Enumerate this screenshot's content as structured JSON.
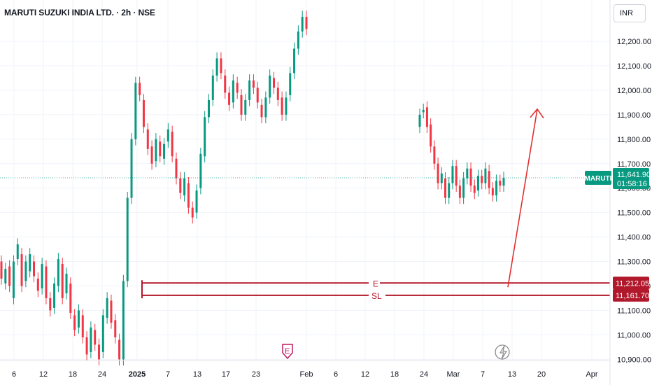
{
  "header": {
    "title": "MARUTI SUZUKI INDIA LTD. · 2h · NSE",
    "currency": "INR"
  },
  "chart_data": {
    "type": "candlestick",
    "symbol": "MARUTI",
    "interval": "2h",
    "exchange": "NSE",
    "price_axis": {
      "ticks": [
        12200,
        12100,
        12000,
        11900,
        11800,
        11700,
        11600,
        11500,
        11400,
        11300,
        11200,
        11100,
        11000,
        10900
      ],
      "tick_labels": [
        "12,200.00",
        "12,100.00",
        "12,000.00",
        "11,900.00",
        "11,800.00",
        "11,700.00",
        "11,600.00",
        "11,500.00",
        "11,400.00",
        "11,300.00",
        "11,200.00",
        "11,100.00",
        "11,000.00",
        "10,900.00"
      ],
      "visible_range": [
        10880,
        12270
      ]
    },
    "time_axis": {
      "labels": [
        "6",
        "12",
        "18",
        "24",
        "2025",
        "7",
        "13",
        "17",
        "23",
        "Feb",
        "6",
        "12",
        "18",
        "24",
        "Mar",
        "7",
        "13",
        "20",
        "Apr"
      ],
      "bold": [
        "2025"
      ]
    },
    "last_price": {
      "symbol_label": "MARUTI",
      "value": 11641.9,
      "label": "11,641.90",
      "countdown": "01:58:16",
      "color": "#089981"
    },
    "levels": [
      {
        "name": "E",
        "value": 11212.05,
        "label": "11,212.05",
        "color": "#b2182b"
      },
      {
        "name": "SL",
        "value": 11161.7,
        "label": "11,161.70",
        "color": "#b2182b"
      }
    ],
    "projection": {
      "color": "#e03131",
      "from_price": 11212,
      "to_price": 11900,
      "target_date": "Mar 20"
    },
    "event_markers": [
      {
        "type": "earnings",
        "label": "E",
        "color": "#c2185b"
      },
      {
        "type": "dividend",
        "label": "",
        "color": "#8a8a8a"
      }
    ],
    "colors": {
      "up": "#089981",
      "down": "#f23645",
      "grid": "#f0f3fa",
      "axis_text": "#131722"
    },
    "ohlc_points": [
      [
        11300,
        11230
      ],
      [
        11210,
        11270
      ],
      [
        11280,
        11200
      ],
      [
        11150,
        11300
      ],
      [
        11310,
        11370
      ],
      [
        11330,
        11200
      ],
      [
        11220,
        11300
      ],
      [
        11260,
        11330
      ],
      [
        11300,
        11240
      ],
      [
        11230,
        11180
      ],
      [
        11190,
        11290
      ],
      [
        11280,
        11150
      ],
      [
        11150,
        11100
      ],
      [
        11110,
        11210
      ],
      [
        11200,
        11310
      ],
      [
        11290,
        11150
      ],
      [
        11170,
        11250
      ],
      [
        11210,
        11090
      ],
      [
        11080,
        11020
      ],
      [
        11030,
        11100
      ],
      [
        11080,
        10990
      ],
      [
        10990,
        10920
      ],
      [
        10930,
        11030
      ],
      [
        11020,
        10960
      ],
      [
        10960,
        10900
      ],
      [
        10930,
        11080
      ],
      [
        11070,
        11150
      ],
      [
        11140,
        11050
      ],
      [
        11060,
        10990
      ],
      [
        10980,
        10900
      ],
      [
        10900,
        11220
      ],
      [
        11220,
        11560
      ],
      [
        11560,
        11800
      ],
      [
        11800,
        12030
      ],
      [
        12030,
        11980
      ],
      [
        11960,
        11850
      ],
      [
        11840,
        11760
      ],
      [
        11770,
        11700
      ],
      [
        11710,
        11800
      ],
      [
        11790,
        11730
      ],
      [
        11720,
        11780
      ],
      [
        11790,
        11840
      ],
      [
        11830,
        11730
      ],
      [
        11720,
        11640
      ],
      [
        11640,
        11580
      ],
      [
        11570,
        11640
      ],
      [
        11620,
        11520
      ],
      [
        11520,
        11480
      ],
      [
        11500,
        11590
      ],
      [
        11600,
        11740
      ],
      [
        11730,
        11890
      ],
      [
        11890,
        11960
      ],
      [
        11960,
        12060
      ],
      [
        12060,
        12130
      ],
      [
        12130,
        12070
      ],
      [
        12060,
        11990
      ],
      [
        11990,
        11940
      ],
      [
        11950,
        12040
      ],
      [
        12030,
        11990
      ],
      [
        11980,
        11900
      ],
      [
        11900,
        11960
      ],
      [
        11960,
        12040
      ],
      [
        12040,
        12010
      ],
      [
        12010,
        11950
      ],
      [
        11940,
        11890
      ],
      [
        11890,
        11970
      ],
      [
        11970,
        12060
      ],
      [
        12050,
        12010
      ],
      [
        12010,
        11960
      ],
      [
        11970,
        11900
      ],
      [
        11900,
        11970
      ],
      [
        11980,
        12070
      ],
      [
        12070,
        12170
      ],
      [
        12170,
        12240
      ],
      [
        12240,
        12300
      ],
      [
        12300,
        12250
      ],
      [
        11850,
        11900
      ],
      [
        11910,
        11920
      ],
      [
        11930,
        11850
      ],
      [
        11860,
        11770
      ],
      [
        11770,
        11700
      ],
      [
        11700,
        11620
      ],
      [
        11620,
        11660
      ],
      [
        11640,
        11560
      ],
      [
        11560,
        11620
      ],
      [
        11620,
        11690
      ],
      [
        11690,
        11610
      ],
      [
        11610,
        11560
      ],
      [
        11560,
        11640
      ],
      [
        11640,
        11680
      ],
      [
        11680,
        11610
      ],
      [
        11610,
        11580
      ],
      [
        11590,
        11650
      ],
      [
        11650,
        11620
      ],
      [
        11620,
        11680
      ],
      [
        11670,
        11600
      ],
      [
        11600,
        11570
      ],
      [
        11570,
        11630
      ],
      [
        11630,
        11610
      ],
      [
        11610,
        11642
      ]
    ]
  }
}
